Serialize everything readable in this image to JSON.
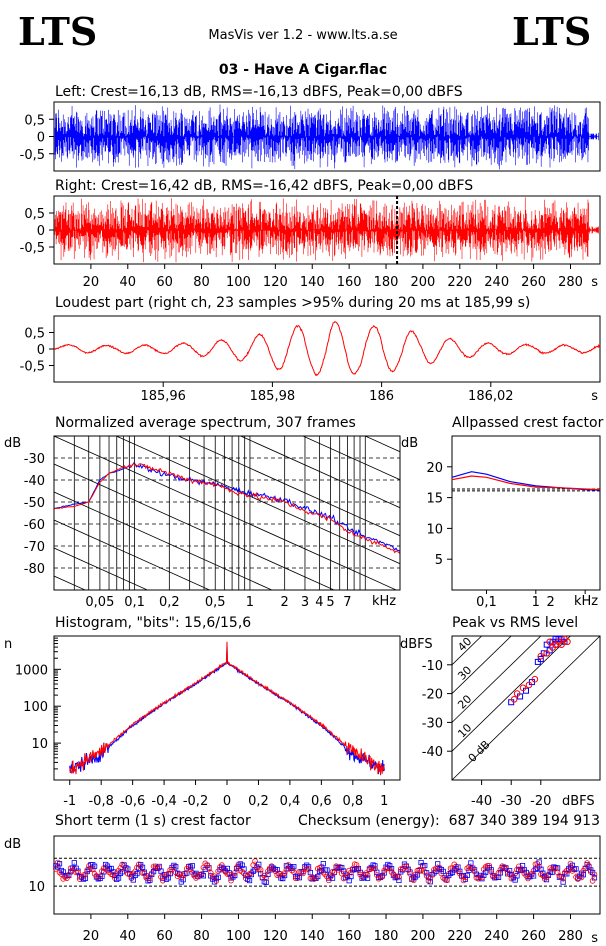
{
  "header": {
    "logo_left": "LTS",
    "logo_right": "LTS",
    "app_title": "MasVis ver 1.2 - www.lts.a.se",
    "file_title": "03 - Have A Cigar.flac"
  },
  "colors": {
    "left": "#0000ff",
    "right": "#ff0000",
    "grid": "#000000"
  },
  "chart_data": [
    {
      "id": "left_waveform",
      "type": "line",
      "title": "Left: Crest=16,13 dB, RMS=-16,13 dBFS, Peak=0,00 dBFS",
      "ylim": [
        -1,
        1
      ],
      "yticks": [
        "0,5",
        "0",
        "-0,5"
      ],
      "xlim": [
        0,
        296
      ],
      "signal_end_s": 290
    },
    {
      "id": "right_waveform",
      "type": "line",
      "title": "Right: Crest=16,42 dB, RMS=-16,42 dBFS, Peak=0,00 dBFS",
      "ylim": [
        -1,
        1
      ],
      "yticks": [
        "0,5",
        "0",
        "-0,5"
      ],
      "xlim": [
        0,
        296
      ],
      "marker_s": 185.99,
      "xticks": [
        "20",
        "40",
        "60",
        "80",
        "100",
        "120",
        "140",
        "160",
        "180",
        "200",
        "220",
        "240",
        "260",
        "280"
      ],
      "xunit": "s"
    },
    {
      "id": "loudest_part",
      "type": "line",
      "title": "Loudest part (right ch, 23 samples >95% during 20 ms at 185,99 s)",
      "ylim": [
        -1,
        1
      ],
      "yticks": [
        "0,5",
        "0",
        "-0,5"
      ],
      "xlim": [
        185.94,
        186.04
      ],
      "xticks": [
        "185,96",
        "185,98",
        "186",
        "186,02"
      ],
      "xunit": "s"
    },
    {
      "id": "spectrum",
      "type": "line",
      "title": "Normalized average spectrum, 307 frames",
      "ylabel": "dB",
      "ylim": [
        -90,
        -20
      ],
      "yticks": [
        "-30",
        "-40",
        "-50",
        "-60",
        "-70",
        "-80"
      ],
      "xscale": "log",
      "xlim_khz": [
        0.02,
        20
      ],
      "xticks": [
        "0,05",
        "0,1",
        "0,2",
        "0,5",
        "1",
        "2",
        "3",
        "4",
        "5",
        "7"
      ],
      "xunit": "kHz",
      "series": [
        {
          "channel": "left",
          "x_khz": [
            0.02,
            0.03,
            0.04,
            0.05,
            0.06,
            0.08,
            0.1,
            0.15,
            0.2,
            0.3,
            0.5,
            0.7,
            1,
            2,
            3,
            5,
            7,
            10,
            15,
            20
          ],
          "y_db": [
            -53,
            -51,
            -50,
            -40,
            -37,
            -35,
            -33,
            -36,
            -38,
            -40,
            -42,
            -44,
            -46,
            -49,
            -53,
            -57,
            -62,
            -66,
            -69,
            -72
          ]
        },
        {
          "channel": "right",
          "x_khz": [
            0.02,
            0.03,
            0.04,
            0.05,
            0.06,
            0.08,
            0.1,
            0.15,
            0.2,
            0.3,
            0.5,
            0.7,
            1,
            2,
            3,
            5,
            7,
            10,
            15,
            20
          ],
          "y_db": [
            -53,
            -52,
            -50,
            -41,
            -37,
            -34,
            -33,
            -35,
            -37,
            -40,
            -42,
            -45,
            -47,
            -50,
            -54,
            -58,
            -63,
            -67,
            -70,
            -73
          ]
        }
      ]
    },
    {
      "id": "allpassed_crest",
      "type": "line",
      "title": "Allpassed crest factor",
      "ylabel": "dB",
      "ylim": [
        0,
        25
      ],
      "yticks": [
        "20",
        "15",
        "10",
        "5"
      ],
      "xscale": "log",
      "xticks": [
        "0,1",
        "1",
        "2"
      ],
      "xunit": "kHz",
      "dashed_ref_db": [
        16.1,
        16.4
      ],
      "series": [
        {
          "channel": "left",
          "x_khz": [
            0.02,
            0.05,
            0.1,
            0.3,
            1,
            3,
            10,
            20
          ],
          "y_db": [
            18.3,
            19.2,
            18.8,
            17.6,
            16.9,
            16.6,
            16.3,
            16.2
          ]
        },
        {
          "channel": "right",
          "x_khz": [
            0.02,
            0.05,
            0.1,
            0.3,
            1,
            3,
            10,
            20
          ],
          "y_db": [
            17.9,
            18.5,
            18.3,
            17.3,
            16.7,
            16.6,
            16.4,
            16.3
          ]
        }
      ]
    },
    {
      "id": "histogram",
      "type": "line",
      "title": "Histogram, \"bits\": 15,6/15,6",
      "ylabel": "n",
      "yscale": "log",
      "yticks": [
        "1000",
        "100",
        "10"
      ],
      "xlim": [
        -1.1,
        1.1
      ],
      "xticks": [
        "-1",
        "-0,8",
        "-0,6",
        "-0,4",
        "-0,2",
        "0",
        "0,2",
        "0,4",
        "0,6",
        "0,8",
        "1"
      ],
      "series": [
        {
          "channel": "left",
          "x": [
            -0.99,
            -0.8,
            -0.6,
            -0.4,
            -0.2,
            0,
            0.2,
            0.4,
            0.6,
            0.8,
            0.99
          ],
          "y": [
            2,
            5,
            30,
            120,
            400,
            1500,
            400,
            120,
            30,
            5,
            2
          ]
        },
        {
          "channel": "right",
          "x": [
            -0.99,
            -0.8,
            -0.6,
            -0.4,
            -0.2,
            0,
            0.2,
            0.4,
            0.6,
            0.8,
            0.99
          ],
          "y": [
            2,
            6,
            32,
            125,
            420,
            1600,
            420,
            125,
            32,
            6,
            2
          ]
        }
      ]
    },
    {
      "id": "peak_vs_rms",
      "type": "scatter",
      "title": "Peak vs RMS level",
      "ylabel": "dBFS",
      "xlabel": "dBFS",
      "yticks": [
        "-10",
        "-20",
        "-30",
        "-40"
      ],
      "xticks": [
        "-40",
        "-30",
        "-20"
      ],
      "crest_lines": [
        "40",
        "30",
        "20",
        "10",
        "0 dB"
      ],
      "series": [
        {
          "channel": "left",
          "points": [
            [
              -18,
              -3
            ],
            [
              -16,
              -2
            ],
            [
              -14,
              -1
            ],
            [
              -15,
              -3
            ],
            [
              -17,
              -5
            ],
            [
              -19,
              -6
            ],
            [
              -20,
              -8
            ],
            [
              -21,
              -9
            ],
            [
              -13,
              -1
            ],
            [
              -15,
              -1
            ],
            [
              -12,
              -2
            ],
            [
              -23,
              -16
            ],
            [
              -25,
              -19
            ],
            [
              -27,
              -21
            ],
            [
              -30,
              -23
            ]
          ]
        },
        {
          "channel": "right",
          "points": [
            [
              -17,
              -2
            ],
            [
              -15,
              -3
            ],
            [
              -14,
              -2
            ],
            [
              -16,
              -4
            ],
            [
              -18,
              -6
            ],
            [
              -20,
              -7
            ],
            [
              -12,
              -1
            ],
            [
              -13,
              -3
            ],
            [
              -11,
              -2
            ],
            [
              -24,
              -17
            ],
            [
              -26,
              -18
            ],
            [
              -28,
              -20
            ],
            [
              -29,
              -22
            ],
            [
              -22,
              -15
            ]
          ]
        }
      ]
    },
    {
      "id": "short_term_crest",
      "type": "scatter",
      "title": "Short term (1 s) crest factor",
      "checksum_label": "Checksum (energy):",
      "checksum_value": "687 340 389 194 913",
      "ylabel": "dB",
      "yticks": [
        "10"
      ],
      "xlim": [
        0,
        296
      ],
      "xticks": [
        "20",
        "40",
        "60",
        "80",
        "100",
        "120",
        "140",
        "160",
        "180",
        "200",
        "220",
        "240",
        "260",
        "280"
      ],
      "xunit": "s",
      "dashed_ref_db": [
        20,
        10
      ]
    }
  ]
}
